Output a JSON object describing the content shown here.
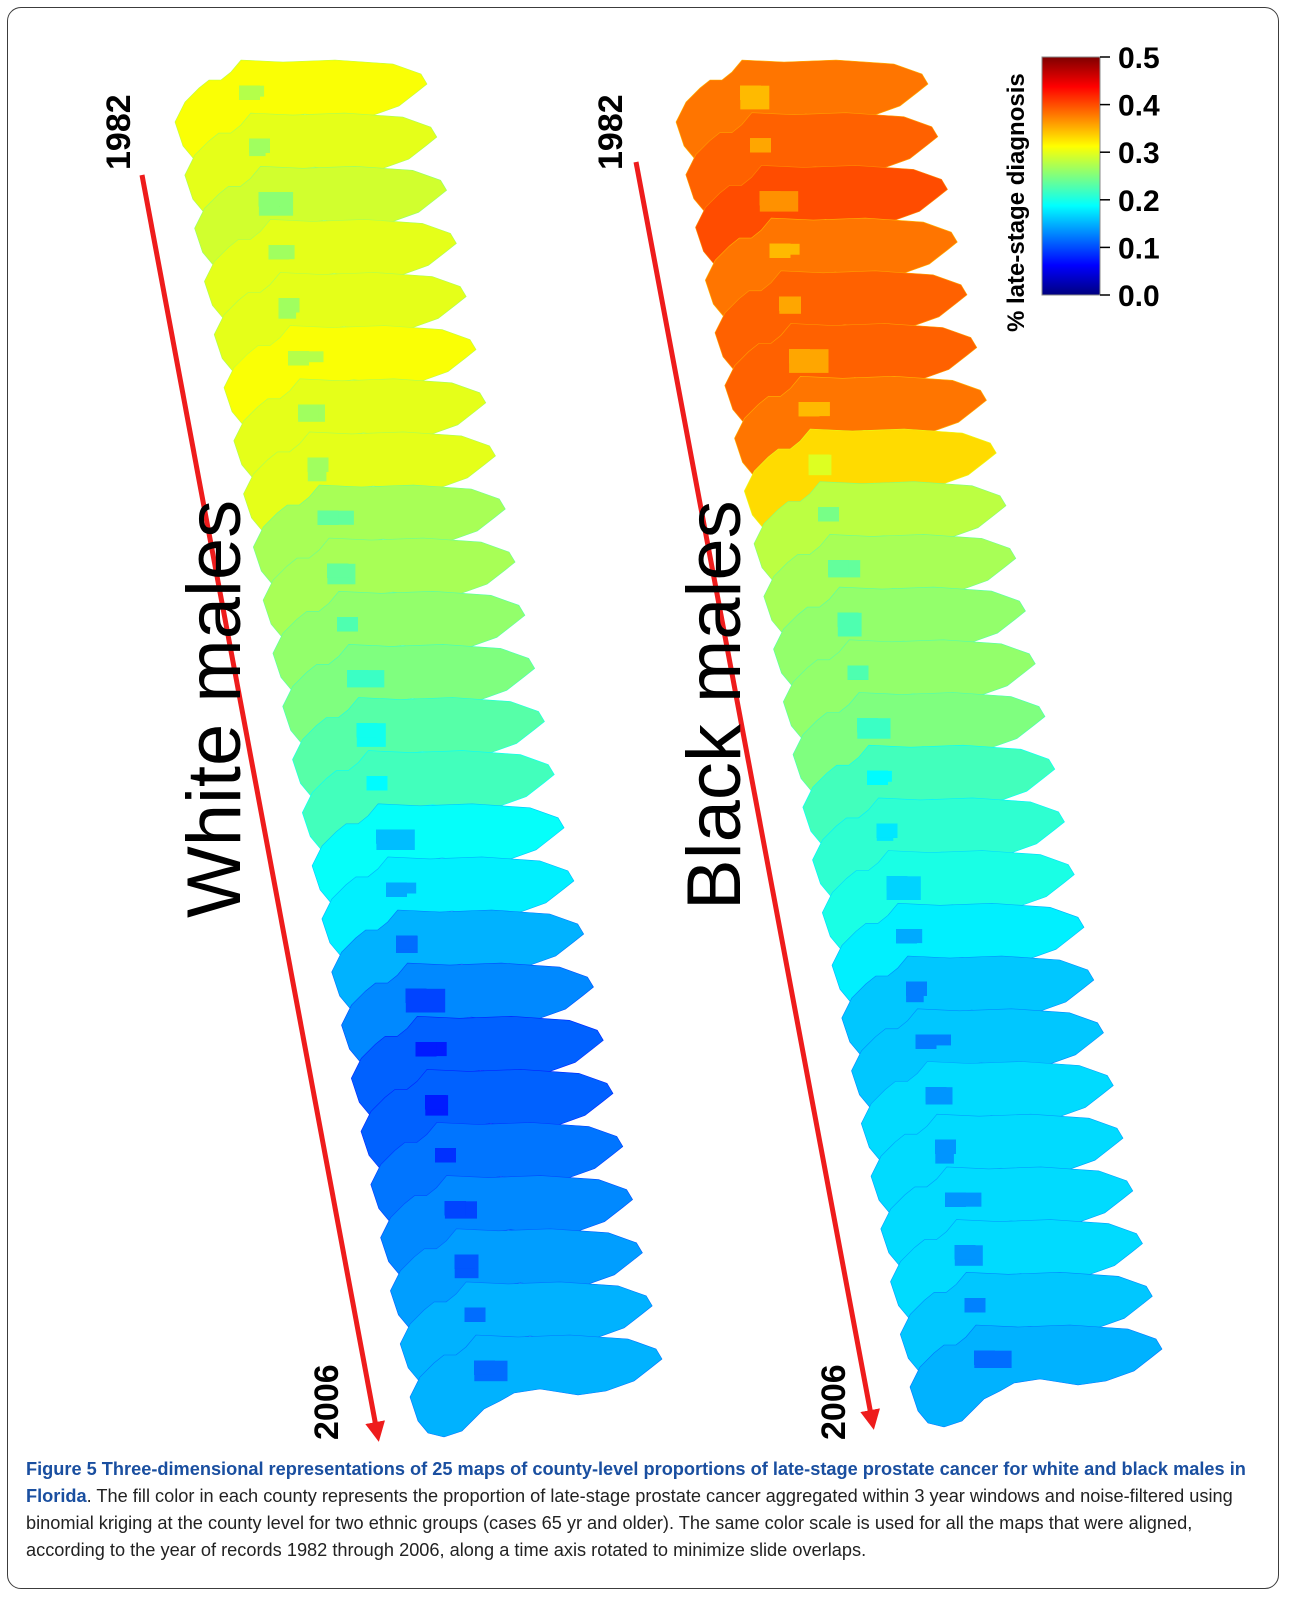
{
  "figure": {
    "panels": [
      {
        "key": "white",
        "label": "White males",
        "start_year": "1982",
        "end_year": "2006",
        "values": [
          0.31,
          0.3,
          0.29,
          0.3,
          0.3,
          0.31,
          0.3,
          0.3,
          0.27,
          0.27,
          0.26,
          0.25,
          0.23,
          0.22,
          0.19,
          0.18,
          0.15,
          0.13,
          0.11,
          0.11,
          0.12,
          0.13,
          0.14,
          0.15,
          0.15
        ]
      },
      {
        "key": "black",
        "label": "Black males",
        "start_year": "1982",
        "end_year": "2006",
        "values": [
          0.38,
          0.39,
          0.4,
          0.38,
          0.39,
          0.39,
          0.38,
          0.33,
          0.28,
          0.27,
          0.26,
          0.26,
          0.25,
          0.22,
          0.21,
          0.2,
          0.18,
          0.16,
          0.16,
          0.17,
          0.17,
          0.17,
          0.17,
          0.16,
          0.15
        ]
      }
    ],
    "colorbar": {
      "title": "% late-stage diagnosis",
      "ticks": [
        "0.5",
        "0.4",
        "0.3",
        "0.2",
        "0.1",
        "0.0"
      ],
      "range": [
        0.0,
        0.5
      ],
      "colors": [
        "#00007f",
        "#0000ff",
        "#007fff",
        "#00ffff",
        "#7fff7f",
        "#ffff00",
        "#ff7f00",
        "#ff0000",
        "#7f0000"
      ]
    },
    "arrow_color": "#ee1c1c"
  },
  "caption": {
    "title": "Figure 5 Three-dimensional representations of 25 maps of county-level proportions of late-stage prostate cancer for white and black males in Florida",
    "body": ". The fill color in each county represents the proportion of late-stage prostate cancer aggregated within 3 year windows and noise-filtered using binomial kriging at the county level for two ethnic groups (cases 65 yr and older). The same color scale is used for all the maps that were aligned, according to the year of records 1982 through 2006, along a time axis rotated to minimize slide overlaps."
  }
}
